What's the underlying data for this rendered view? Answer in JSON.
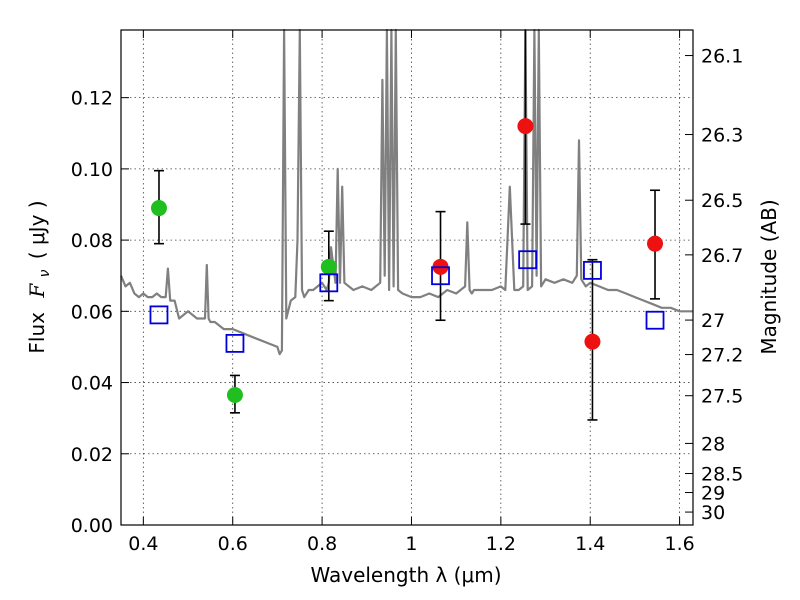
{
  "chart_data": {
    "type": "scatter",
    "xlabel": "Wavelength  λ (μm)",
    "ylabel": "Flux  F_ν  ( μJy )",
    "ylabel_parts": {
      "prefix": "Flux",
      "symbol": "F",
      "subscript": "ν",
      "open": "( ",
      "unit": "μJy",
      "close": " )"
    },
    "ylabel_right": "Magnitude (AB)",
    "xlim": [
      0.35,
      1.63
    ],
    "ylim": [
      0.0,
      0.139
    ],
    "grid": true,
    "x_ticks": [
      0.4,
      0.6,
      0.8,
      1.0,
      1.2,
      1.4,
      1.6
    ],
    "x_tick_labels": [
      "0.4",
      "0.6",
      "0.8",
      "1",
      "1.2",
      "1.4",
      "1.6"
    ],
    "y_ticks": [
      0.0,
      0.02,
      0.04,
      0.06,
      0.08,
      0.1,
      0.12
    ],
    "y_tick_labels": [
      "0.00",
      "0.02",
      "0.04",
      "0.06",
      "0.08",
      "0.10",
      "0.12"
    ],
    "right_axis": {
      "type": "AB magnitude",
      "ticks": [
        26.1,
        26.3,
        26.5,
        26.7,
        27,
        27.2,
        27.5,
        28,
        28.5,
        29,
        30
      ],
      "tick_labels": [
        "26.1",
        "26.3",
        "26.5",
        "26.7",
        "27",
        "27.2",
        "27.5",
        "28",
        "28.5",
        "29",
        "30"
      ]
    },
    "colors": {
      "green": "#1fbf1f",
      "red": "#ee1111",
      "blue": "#0000dd",
      "model": "#808080",
      "errorbar": "#000000"
    },
    "series": [
      {
        "marker": "circle",
        "color": "#1fbf1f",
        "x": [
          0.435,
          0.605,
          0.815
        ],
        "y": [
          0.089,
          0.0365,
          0.0725
        ],
        "yerr_low": [
          0.079,
          0.0315,
          0.063
        ],
        "yerr_high": [
          0.0995,
          0.042,
          0.0825
        ]
      },
      {
        "marker": "circle",
        "color": "#ee1111",
        "x": [
          1.065,
          1.255,
          1.405,
          1.545
        ],
        "y": [
          0.0725,
          0.112,
          0.0515,
          0.079
        ],
        "yerr_low": [
          0.0575,
          0.0845,
          0.0295,
          0.0635
        ],
        "yerr_high": [
          0.088,
          0.139,
          0.0745,
          0.094
        ]
      },
      {
        "marker": "open-square",
        "color": "#0000dd",
        "x": [
          0.435,
          0.605,
          0.815,
          1.065,
          1.26,
          1.405,
          1.545
        ],
        "y": [
          0.059,
          0.051,
          0.068,
          0.07,
          0.0745,
          0.0715,
          0.0575
        ]
      },
      {
        "marker": "line",
        "color": "#808080",
        "x": [
          0.35,
          0.36,
          0.37,
          0.38,
          0.39,
          0.4,
          0.41,
          0.42,
          0.43,
          0.44,
          0.45,
          0.455,
          0.46,
          0.47,
          0.48,
          0.49,
          0.5,
          0.51,
          0.52,
          0.53,
          0.538,
          0.542,
          0.546,
          0.55,
          0.56,
          0.58,
          0.6,
          0.62,
          0.64,
          0.66,
          0.68,
          0.7,
          0.705,
          0.71,
          0.715,
          0.72,
          0.73,
          0.74,
          0.745,
          0.75,
          0.755,
          0.76,
          0.77,
          0.78,
          0.79,
          0.8,
          0.81,
          0.815,
          0.82,
          0.83,
          0.835,
          0.84,
          0.845,
          0.85,
          0.87,
          0.89,
          0.91,
          0.93,
          0.935,
          0.94,
          0.945,
          0.95,
          0.955,
          0.96,
          0.965,
          0.97,
          0.98,
          1.0,
          1.02,
          1.04,
          1.06,
          1.08,
          1.1,
          1.12,
          1.125,
          1.13,
          1.135,
          1.14,
          1.16,
          1.18,
          1.2,
          1.21,
          1.22,
          1.23,
          1.24,
          1.25,
          1.255,
          1.26,
          1.27,
          1.275,
          1.28,
          1.285,
          1.29,
          1.3,
          1.32,
          1.34,
          1.36,
          1.37,
          1.375,
          1.38,
          1.385,
          1.39,
          1.4,
          1.42,
          1.44,
          1.46,
          1.48,
          1.5,
          1.52,
          1.54,
          1.56,
          1.58,
          1.6,
          1.63
        ],
        "y": [
          0.07,
          0.067,
          0.068,
          0.065,
          0.064,
          0.065,
          0.064,
          0.064,
          0.065,
          0.064,
          0.064,
          0.072,
          0.063,
          0.063,
          0.058,
          0.059,
          0.06,
          0.059,
          0.058,
          0.058,
          0.058,
          0.073,
          0.058,
          0.057,
          0.057,
          0.055,
          0.055,
          0.054,
          0.053,
          0.052,
          0.051,
          0.05,
          0.048,
          0.049,
          0.139,
          0.058,
          0.063,
          0.064,
          0.08,
          0.139,
          0.066,
          0.064,
          0.066,
          0.066,
          0.067,
          0.068,
          0.066,
          0.068,
          0.078,
          0.068,
          0.1,
          0.068,
          0.095,
          0.068,
          0.066,
          0.067,
          0.066,
          0.068,
          0.125,
          0.07,
          0.139,
          0.066,
          0.139,
          0.067,
          0.139,
          0.066,
          0.065,
          0.064,
          0.064,
          0.065,
          0.064,
          0.066,
          0.065,
          0.067,
          0.085,
          0.066,
          0.065,
          0.066,
          0.066,
          0.066,
          0.067,
          0.066,
          0.095,
          0.066,
          0.066,
          0.067,
          0.139,
          0.066,
          0.067,
          0.139,
          0.07,
          0.139,
          0.067,
          0.069,
          0.068,
          0.069,
          0.068,
          0.07,
          0.108,
          0.069,
          0.068,
          0.067,
          0.068,
          0.067,
          0.066,
          0.066,
          0.065,
          0.064,
          0.063,
          0.062,
          0.061,
          0.061,
          0.06,
          0.06
        ]
      }
    ]
  }
}
